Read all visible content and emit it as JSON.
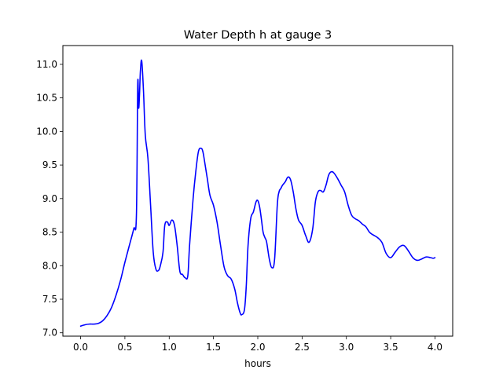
{
  "chart_data": {
    "type": "line",
    "title": "Water Depth h at gauge 3",
    "xlabel": "hours",
    "ylabel": "",
    "xlim": [
      -0.2,
      4.2
    ],
    "ylim": [
      6.95,
      11.28
    ],
    "xticks": [
      0.0,
      0.5,
      1.0,
      1.5,
      2.0,
      2.5,
      3.0,
      3.5,
      4.0
    ],
    "xtick_labels": [
      "0.0",
      "0.5",
      "1.0",
      "1.5",
      "2.0",
      "2.5",
      "3.0",
      "3.5",
      "4.0"
    ],
    "yticks": [
      7.0,
      7.5,
      8.0,
      8.5,
      9.0,
      9.5,
      10.0,
      10.5,
      11.0
    ],
    "ytick_labels": [
      "7.0",
      "7.5",
      "8.0",
      "8.5",
      "9.0",
      "9.5",
      "10.0",
      "10.5",
      "11.0"
    ],
    "grid": false,
    "series": [
      {
        "color": "#0000ff",
        "x": [
          0.0,
          0.05,
          0.1,
          0.15,
          0.2,
          0.25,
          0.3,
          0.35,
          0.4,
          0.45,
          0.5,
          0.55,
          0.6,
          0.63,
          0.645,
          0.655,
          0.665,
          0.675,
          0.69,
          0.71,
          0.73,
          0.76,
          0.79,
          0.82,
          0.85,
          0.88,
          0.9,
          0.93,
          0.95,
          0.98,
          1.0,
          1.03,
          1.06,
          1.09,
          1.12,
          1.15,
          1.18,
          1.21,
          1.23,
          1.27,
          1.3,
          1.33,
          1.36,
          1.38,
          1.4,
          1.43,
          1.46,
          1.5,
          1.54,
          1.58,
          1.62,
          1.66,
          1.7,
          1.74,
          1.77,
          1.8,
          1.82,
          1.85,
          1.87,
          1.89,
          1.92,
          1.95,
          1.98,
          2.0,
          2.02,
          2.04,
          2.06,
          2.08,
          2.1,
          2.13,
          2.16,
          2.19,
          2.22,
          2.24,
          2.26,
          2.28,
          2.31,
          2.34,
          2.37,
          2.4,
          2.43,
          2.46,
          2.5,
          2.54,
          2.58,
          2.62,
          2.65,
          2.68,
          2.71,
          2.74,
          2.77,
          2.8,
          2.83,
          2.86,
          2.9,
          2.94,
          2.98,
          3.02,
          3.06,
          3.1,
          3.14,
          3.18,
          3.22,
          3.26,
          3.3,
          3.35,
          3.4,
          3.45,
          3.5,
          3.55,
          3.6,
          3.65,
          3.7,
          3.75,
          3.8,
          3.85,
          3.9,
          3.95,
          3.98,
          4.0
        ],
        "y": [
          7.1,
          7.12,
          7.13,
          7.13,
          7.14,
          7.18,
          7.26,
          7.38,
          7.56,
          7.78,
          8.05,
          8.3,
          8.55,
          8.75,
          10.7,
          10.35,
          10.55,
          10.9,
          11.05,
          10.6,
          9.95,
          9.6,
          8.9,
          8.2,
          7.95,
          7.93,
          8.0,
          8.2,
          8.6,
          8.65,
          8.6,
          8.68,
          8.6,
          8.3,
          7.92,
          7.87,
          7.82,
          7.85,
          8.3,
          9.0,
          9.4,
          9.7,
          9.75,
          9.7,
          9.55,
          9.3,
          9.05,
          8.9,
          8.65,
          8.3,
          7.98,
          7.85,
          7.8,
          7.65,
          7.45,
          7.3,
          7.27,
          7.35,
          7.7,
          8.3,
          8.7,
          8.8,
          8.95,
          8.97,
          8.88,
          8.7,
          8.5,
          8.42,
          8.35,
          8.1,
          7.97,
          8.1,
          8.9,
          9.1,
          9.15,
          9.2,
          9.25,
          9.32,
          9.28,
          9.1,
          8.85,
          8.68,
          8.6,
          8.45,
          8.35,
          8.55,
          8.95,
          9.1,
          9.12,
          9.1,
          9.2,
          9.35,
          9.4,
          9.38,
          9.3,
          9.2,
          9.1,
          8.9,
          8.75,
          8.7,
          8.67,
          8.62,
          8.58,
          8.5,
          8.46,
          8.42,
          8.35,
          8.18,
          8.12,
          8.2,
          8.28,
          8.3,
          8.22,
          8.12,
          8.08,
          8.1,
          8.13,
          8.12,
          8.11,
          8.12
        ]
      }
    ]
  }
}
